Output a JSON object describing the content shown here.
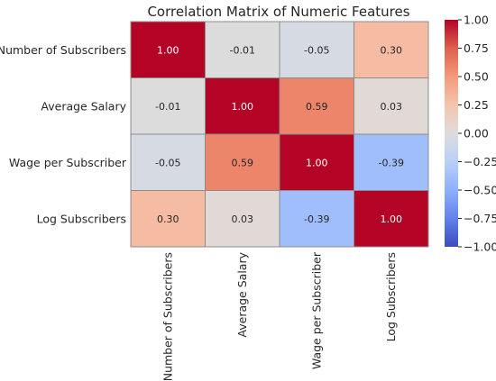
{
  "chart_data": {
    "type": "heatmap",
    "title": "Correlation Matrix of Numeric Features",
    "rows": [
      "Number of Subscribers",
      "Average Salary",
      "Wage per Subscriber",
      "Log Subscribers"
    ],
    "columns": [
      "Number of Subscribers",
      "Average Salary",
      "Wage per Subscriber",
      "Log Subscribers"
    ],
    "values": [
      [
        1.0,
        -0.01,
        -0.05,
        0.3
      ],
      [
        -0.01,
        1.0,
        0.59,
        0.03
      ],
      [
        -0.05,
        0.59,
        1.0,
        -0.39
      ],
      [
        0.3,
        0.03,
        -0.39,
        1.0
      ]
    ],
    "value_labels": [
      [
        "1.00",
        "-0.01",
        "-0.05",
        "0.30"
      ],
      [
        "-0.01",
        "1.00",
        "0.59",
        "0.03"
      ],
      [
        "-0.05",
        "0.59",
        "1.00",
        "-0.39"
      ],
      [
        "0.30",
        "0.03",
        "-0.39",
        "1.00"
      ]
    ],
    "colormap": "coolwarm",
    "vmin": -1.0,
    "vmax": 1.0,
    "colorbar": {
      "ticks": [
        1.0,
        0.75,
        0.5,
        0.25,
        0.0,
        -0.25,
        -0.5,
        -0.75,
        -1.0
      ],
      "tick_labels": [
        "1.00",
        "0.75",
        "0.50",
        "0.25",
        "0.00",
        "−0.25",
        "−0.50",
        "−0.75",
        "−1.00"
      ],
      "placement": "right"
    },
    "cell_border_color": "#8c8c8c",
    "colors": {
      "low": "#3b4cc0",
      "mid": "#dddcdc",
      "high": "#b40426"
    }
  }
}
